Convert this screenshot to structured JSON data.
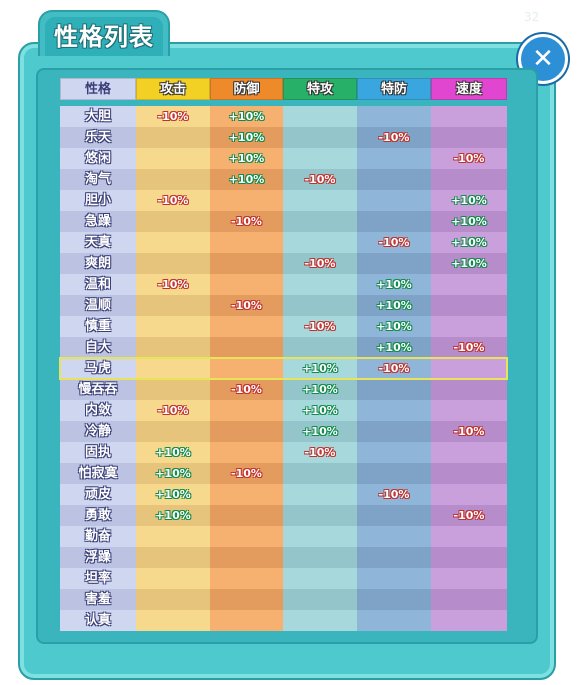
{
  "window": {
    "title": "性格列表",
    "version_text": "32"
  },
  "colors": {
    "name_col": [
      "#cfd6f0",
      "#bcc3e2"
    ],
    "atk_col": [
      "#f7d98e",
      "#e6c47b"
    ],
    "def_col": [
      "#f6b070",
      "#e49c5e"
    ],
    "spatk_col": [
      "#a6d8dc",
      "#93c5cb"
    ],
    "spdef_col": [
      "#8fb6d8",
      "#7ea3c6"
    ],
    "spd_col": [
      "#c9a0dc",
      "#b68cca"
    ],
    "hdr_name": "#cfd6f0",
    "hdr_atk": "#f2d024",
    "hdr_def": "#ee8a2a",
    "hdr_spatk": "#27b067",
    "hdr_spdef": "#3aa6e0",
    "hdr_spd": "#e046cf"
  },
  "headers": [
    "性格",
    "攻击",
    "防御",
    "特攻",
    "特防",
    "速度"
  ],
  "highlight_row": 12,
  "natures": [
    {
      "name": "大胆",
      "atk": "-10%",
      "def": "+10%",
      "spatk": "",
      "spdef": "",
      "spd": ""
    },
    {
      "name": "乐天",
      "atk": "",
      "def": "+10%",
      "spatk": "",
      "spdef": "-10%",
      "spd": ""
    },
    {
      "name": "悠闲",
      "atk": "",
      "def": "+10%",
      "spatk": "",
      "spdef": "",
      "spd": "-10%"
    },
    {
      "name": "淘气",
      "atk": "",
      "def": "+10%",
      "spatk": "-10%",
      "spdef": "",
      "spd": ""
    },
    {
      "name": "胆小",
      "atk": "-10%",
      "def": "",
      "spatk": "",
      "spdef": "",
      "spd": "+10%"
    },
    {
      "name": "急躁",
      "atk": "",
      "def": "-10%",
      "spatk": "",
      "spdef": "",
      "spd": "+10%"
    },
    {
      "name": "天真",
      "atk": "",
      "def": "",
      "spatk": "",
      "spdef": "-10%",
      "spd": "+10%"
    },
    {
      "name": "爽朗",
      "atk": "",
      "def": "",
      "spatk": "-10%",
      "spdef": "",
      "spd": "+10%"
    },
    {
      "name": "温和",
      "atk": "-10%",
      "def": "",
      "spatk": "",
      "spdef": "+10%",
      "spd": ""
    },
    {
      "name": "温顺",
      "atk": "",
      "def": "-10%",
      "spatk": "",
      "spdef": "+10%",
      "spd": ""
    },
    {
      "name": "慎重",
      "atk": "",
      "def": "",
      "spatk": "-10%",
      "spdef": "+10%",
      "spd": ""
    },
    {
      "name": "自大",
      "atk": "",
      "def": "",
      "spatk": "",
      "spdef": "+10%",
      "spd": "-10%"
    },
    {
      "name": "马虎",
      "atk": "",
      "def": "",
      "spatk": "+10%",
      "spdef": "-10%",
      "spd": ""
    },
    {
      "name": "慢吞吞",
      "atk": "",
      "def": "-10%",
      "spatk": "+10%",
      "spdef": "",
      "spd": ""
    },
    {
      "name": "内敛",
      "atk": "-10%",
      "def": "",
      "spatk": "+10%",
      "spdef": "",
      "spd": ""
    },
    {
      "name": "冷静",
      "atk": "",
      "def": "",
      "spatk": "+10%",
      "spdef": "",
      "spd": "-10%"
    },
    {
      "name": "固执",
      "atk": "+10%",
      "def": "",
      "spatk": "-10%",
      "spdef": "",
      "spd": ""
    },
    {
      "name": "怕寂寞",
      "atk": "+10%",
      "def": "-10%",
      "spatk": "",
      "spdef": "",
      "spd": ""
    },
    {
      "name": "顽皮",
      "atk": "+10%",
      "def": "",
      "spatk": "",
      "spdef": "-10%",
      "spd": ""
    },
    {
      "name": "勇敢",
      "atk": "+10%",
      "def": "",
      "spatk": "",
      "spdef": "",
      "spd": "-10%"
    },
    {
      "name": "勤奋",
      "atk": "",
      "def": "",
      "spatk": "",
      "spdef": "",
      "spd": ""
    },
    {
      "name": "浮躁",
      "atk": "",
      "def": "",
      "spatk": "",
      "spdef": "",
      "spd": ""
    },
    {
      "name": "坦率",
      "atk": "",
      "def": "",
      "spatk": "",
      "spdef": "",
      "spd": ""
    },
    {
      "name": "害羞",
      "atk": "",
      "def": "",
      "spatk": "",
      "spdef": "",
      "spd": ""
    },
    {
      "name": "认真",
      "atk": "",
      "def": "",
      "spatk": "",
      "spdef": "",
      "spd": ""
    }
  ]
}
